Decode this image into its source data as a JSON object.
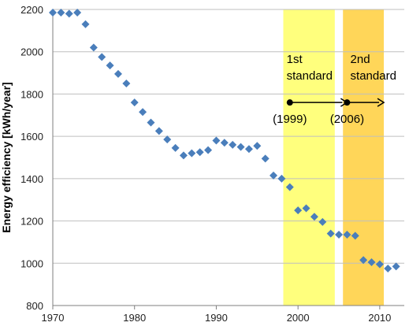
{
  "chart_data": {
    "type": "scatter",
    "title": "",
    "xlabel": "",
    "ylabel": "Energy efficiency [kWh/year]",
    "xlim": [
      1970,
      2013
    ],
    "ylim": [
      800,
      2200
    ],
    "x_ticks": [
      1970,
      1980,
      1990,
      2000,
      2010
    ],
    "x_tick_labels": [
      "1970",
      "1980",
      "1990",
      "2000",
      "2010"
    ],
    "y_ticks": [
      800,
      1000,
      1200,
      1400,
      1600,
      1800,
      2000,
      2200
    ],
    "y_tick_labels": [
      "800",
      "1000",
      "1200",
      "1400",
      "1600",
      "1800",
      "2000",
      "2200"
    ],
    "grid": "horizontal",
    "legend": "none",
    "marker": "diamond",
    "marker_color": "#4A7EBB",
    "series": [
      {
        "x": [
          1970,
          1971,
          1972,
          1973,
          1974,
          1975,
          1976,
          1977,
          1978,
          1979,
          1980,
          1981,
          1982,
          1983,
          1984,
          1985,
          1986,
          1987,
          1988,
          1989,
          1990,
          1991,
          1992,
          1993,
          1994,
          1995,
          1996,
          1997,
          1998,
          1999,
          2000,
          2001,
          2002,
          2003,
          2004,
          2005,
          2006,
          2007,
          2008,
          2009,
          2010,
          2011,
          2012
        ],
        "y": [
          2185,
          2185,
          2180,
          2185,
          2130,
          2020,
          1975,
          1935,
          1895,
          1850,
          1760,
          1715,
          1665,
          1625,
          1585,
          1545,
          1510,
          1520,
          1525,
          1535,
          1580,
          1570,
          1560,
          1550,
          1540,
          1555,
          1495,
          1415,
          1400,
          1360,
          1250,
          1260,
          1220,
          1195,
          1140,
          1135,
          1135,
          1130,
          1015,
          1005,
          995,
          975,
          985
        ]
      }
    ],
    "annotations": [
      {
        "label_lines": [
          "1st",
          "standard"
        ],
        "band_x": [
          1998.2,
          2004.5
        ],
        "band_color": "#FFFF66",
        "arrow_start_x": 1999,
        "arrow_end_x": 2006,
        "arrow_y": 1760,
        "start_label": "(1999)"
      },
      {
        "label_lines": [
          "2nd",
          "standard"
        ],
        "band_x": [
          2005.5,
          2010.5
        ],
        "band_color": "#FFC000",
        "arrow_start_x": 2006,
        "arrow_end_x": 2010.5,
        "arrow_y": 1760,
        "start_label": "(2006)"
      }
    ]
  }
}
